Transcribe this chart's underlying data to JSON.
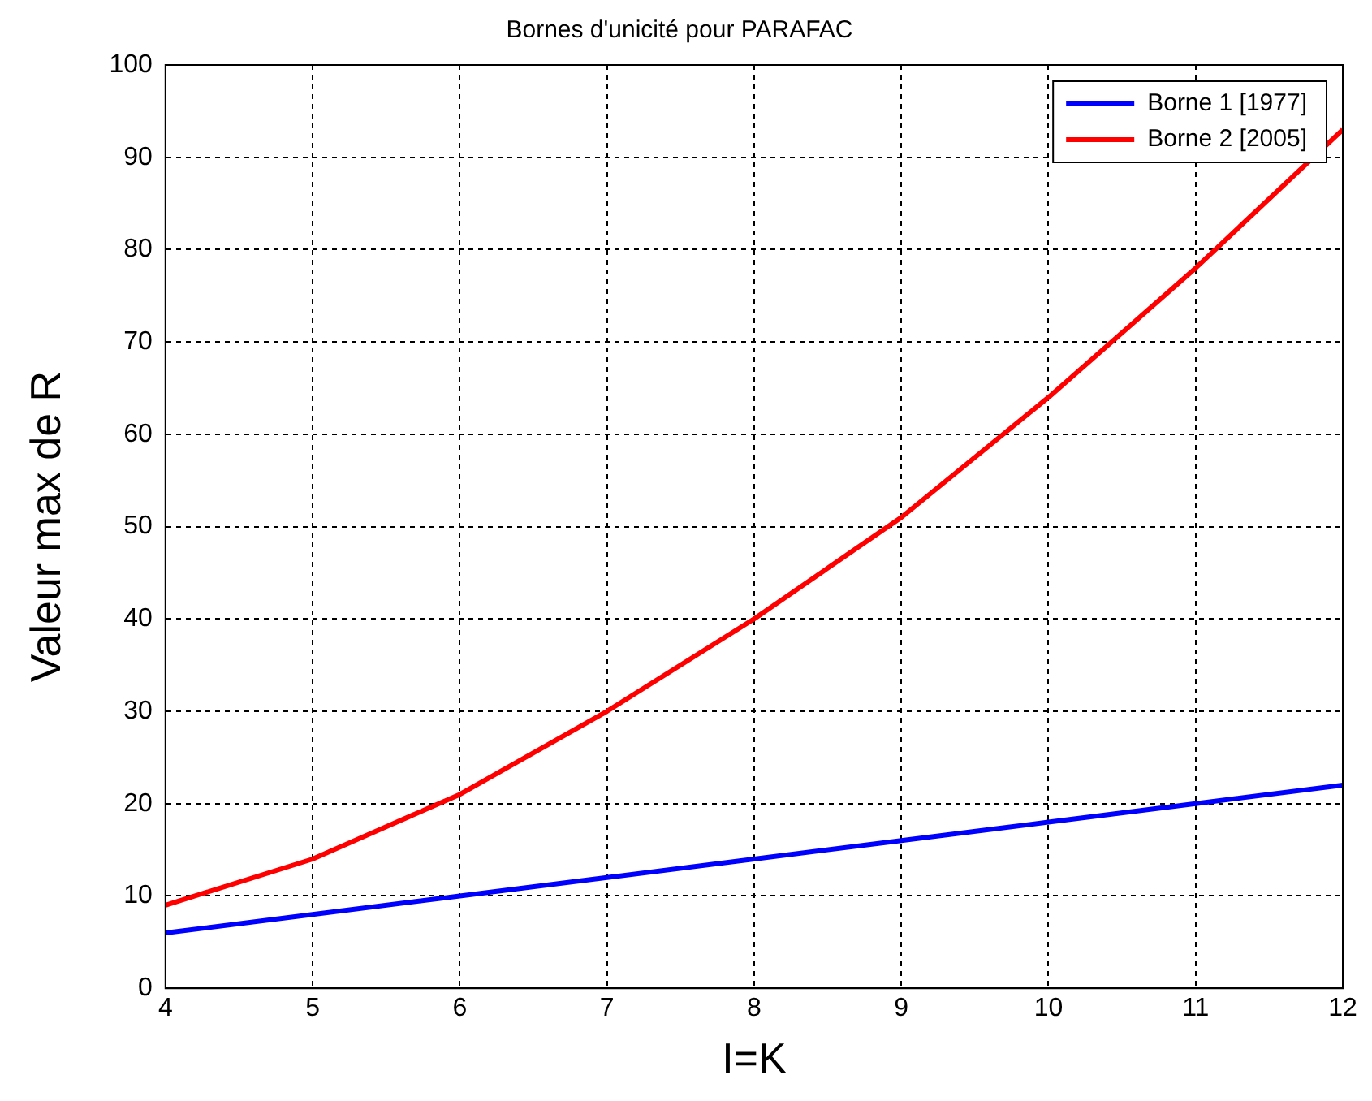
{
  "chart_data": {
    "type": "line",
    "title": "Bornes d'unicité pour PARAFAC",
    "xlabel": "I=K",
    "ylabel": "Valeur max de R",
    "x": [
      4,
      5,
      6,
      7,
      8,
      9,
      10,
      11,
      12
    ],
    "series": [
      {
        "name": "Borne 1 [1977]",
        "color": "#0000ff",
        "values": [
          6,
          8,
          10,
          12,
          14,
          16,
          18,
          20,
          22
        ]
      },
      {
        "name": "Borne 2 [2005]",
        "color": "#ff0000",
        "values": [
          9,
          14,
          21,
          30,
          40,
          51,
          64,
          78,
          93
        ]
      }
    ],
    "xlim": [
      4,
      12
    ],
    "xticks": [
      4,
      5,
      6,
      7,
      8,
      9,
      10,
      11,
      12
    ],
    "ylim": [
      0,
      100
    ],
    "yticks": [
      0,
      10,
      20,
      30,
      40,
      50,
      60,
      70,
      80,
      90,
      100
    ],
    "grid": true,
    "legend": "top right",
    "marker": "none",
    "line_style": "solid"
  }
}
